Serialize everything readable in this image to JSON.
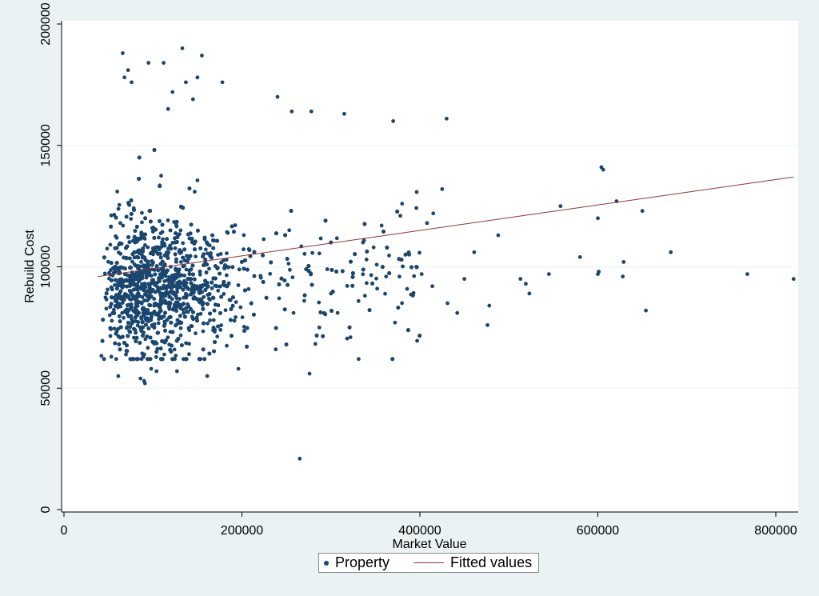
{
  "chart_data": {
    "type": "scatter",
    "title": "",
    "xlabel": "Market Value",
    "ylabel": "Rebuild Cost",
    "xlim": [
      0,
      820000
    ],
    "ylim": [
      0,
      200000
    ],
    "xticks": [
      "0",
      "200000",
      "400000",
      "600000",
      "800000"
    ],
    "yticks": [
      "0",
      "50000",
      "100000",
      "150000",
      "200000"
    ],
    "grid": "horizontal",
    "legend_position": "bottom-center",
    "colors": {
      "points": "#1a476f",
      "fit_line": "#90353b",
      "plot_bg": "#ffffff",
      "outer_bg": "#eaf2f3",
      "grid": "#eaf2f3"
    },
    "series": [
      {
        "name": "Property",
        "kind": "scatter",
        "x": [
          66000,
          95000,
          112000,
          133000,
          155000,
          150000,
          137000,
          145000,
          72000,
          76000,
          68000,
          122000,
          117000,
          178000,
          240000,
          256000,
          278000,
          315000,
          370000,
          430000,
          61000,
          86000,
          91000,
          90000,
          98000,
          104000,
          127000,
          161000,
          196000,
          238000,
          276000,
          265000,
          372000,
          476000,
          519000,
          513000,
          580000,
          601000,
          606000,
          628000,
          650000,
          682000,
          768000,
          820000,
          629000,
          654000,
          523000,
          545000,
          558000,
          600000,
          604000,
          600000,
          621000,
          488000,
          478000,
          442000,
          431000,
          450000,
          461000,
          402000,
          414000,
          396000,
          377000,
          388000,
          348000,
          336000,
          322000,
          300000,
          287000,
          270000,
          352000,
          362000,
          340000,
          357000,
          378000,
          380000,
          408000,
          415000,
          425000
        ],
        "y": [
          188000,
          184000,
          184000,
          190000,
          187000,
          178000,
          176000,
          169000,
          181000,
          176000,
          178000,
          172000,
          165000,
          176000,
          170000,
          164000,
          164000,
          163000,
          160000,
          161000,
          55000,
          54000,
          52000,
          53000,
          58000,
          57000,
          57000,
          55000,
          58000,
          66000,
          56000,
          21000,
          77000,
          76000,
          93000,
          95000,
          104000,
          98000,
          140000,
          96000,
          123000,
          106000,
          97000,
          95000,
          102000,
          82000,
          89000,
          97000,
          125000,
          120000,
          141000,
          97000,
          127000,
          113000,
          84000,
          81000,
          85000,
          95000,
          106000,
          97000,
          92000,
          100000,
          96000,
          105000,
          108000,
          110000,
          71000,
          89000,
          75000,
          86000,
          91000,
          96000,
          103000,
          117000,
          121000,
          126000,
          118000,
          122000,
          132000
        ]
      },
      {
        "name": "Fitted values",
        "kind": "line",
        "x": [
          38000,
          820000
        ],
        "y": [
          96000,
          137000
        ]
      }
    ]
  },
  "legend": {
    "property": "Property",
    "fitted": "Fitted values"
  }
}
